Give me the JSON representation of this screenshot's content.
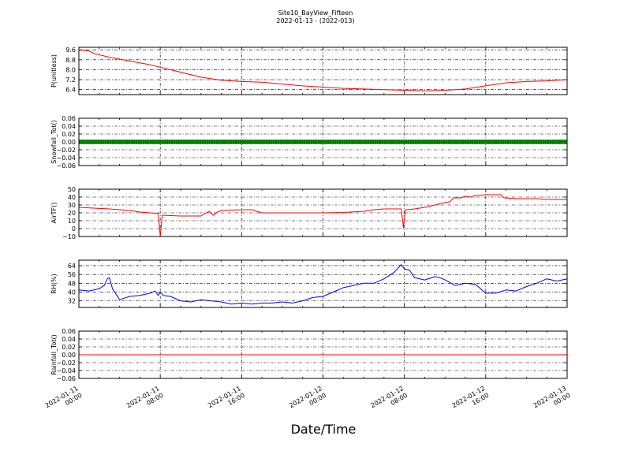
{
  "title": "Site10_BayView_Fifteen",
  "subtitle": "2022-01-13 - (2022-013)",
  "xlabel": "Date/Time",
  "x_ticks": [
    {
      "l1": "2022-01-11",
      "l2": "00:00"
    },
    {
      "l1": "2022-01-11",
      "l2": "08:00"
    },
    {
      "l1": "2022-01-11",
      "l2": "16:00"
    },
    {
      "l1": "2022-01-12",
      "l2": "00:00"
    },
    {
      "l1": "2022-01-12",
      "l2": "08:00"
    },
    {
      "l1": "2022-01-12",
      "l2": "16:00"
    },
    {
      "l1": "2022-01-13",
      "l2": "00:00"
    }
  ],
  "colors": {
    "pressure": "#ff0000",
    "snowfall": "#008000",
    "airtemp": "#ff0000",
    "rh": "#0000ff",
    "rainfall": "#ff0000"
  },
  "chart_data": [
    {
      "type": "line",
      "ylabel": "P(unitless)",
      "ylim": [
        6.0,
        9.8
      ],
      "yticks": [
        "9.6",
        "8.8",
        "8.0",
        "7.2",
        "6.4"
      ],
      "ytick_values": [
        9.6,
        8.8,
        8.0,
        7.2,
        6.4
      ],
      "x_hours": [
        0,
        1,
        1.5,
        3,
        5,
        7,
        8,
        9,
        10,
        12,
        14,
        16,
        18,
        20,
        22,
        24,
        26,
        28,
        30,
        32,
        34,
        36,
        38,
        40,
        42,
        44,
        46,
        47,
        48
      ],
      "values": [
        9.6,
        9.5,
        9.3,
        9.0,
        8.7,
        8.4,
        8.2,
        8.0,
        7.8,
        7.4,
        7.15,
        7.05,
        7.0,
        6.85,
        6.7,
        6.6,
        6.5,
        6.45,
        6.4,
        6.35,
        6.3,
        6.35,
        6.45,
        6.7,
        6.95,
        7.05,
        7.1,
        7.15,
        7.2
      ]
    },
    {
      "type": "scatter",
      "ylabel": "Snowfall_Tot()",
      "ylim": [
        -0.06,
        0.06
      ],
      "yticks": [
        "0.06",
        "0.04",
        "0.02",
        "0.00",
        "−0.02",
        "−0.04",
        "−0.06"
      ],
      "ytick_values": [
        0.06,
        0.04,
        0.02,
        0.0,
        -0.02,
        -0.04,
        -0.06
      ],
      "x_hours": [
        0,
        48
      ],
      "values": [
        0.0,
        0.0
      ]
    },
    {
      "type": "line",
      "ylabel": "AirTF()",
      "ylim": [
        -10,
        50
      ],
      "yticks": [
        "50",
        "40",
        "30",
        "20",
        "10",
        "0",
        "−10"
      ],
      "ytick_values": [
        50,
        40,
        30,
        20,
        10,
        0,
        -10
      ],
      "x_hours": [
        0,
        3,
        5,
        6,
        7,
        7.6,
        7.8,
        8.0,
        8.2,
        10,
        12,
        12.8,
        13.2,
        13.6,
        14,
        16,
        17,
        18,
        20,
        22,
        24,
        26,
        28,
        29,
        30,
        31.7,
        31.9,
        32.1,
        32.3,
        33,
        34,
        35,
        36,
        36.5,
        36.8,
        37.5,
        38,
        38.5,
        39,
        40,
        41,
        41.5,
        41.8,
        43,
        45,
        46,
        48
      ],
      "values": [
        27,
        25,
        23,
        21,
        20,
        19.5,
        19,
        -10,
        17,
        16,
        16,
        22,
        17,
        21,
        23,
        24,
        24,
        20,
        20,
        20,
        20,
        20.5,
        22,
        24,
        25,
        25,
        1,
        24,
        24,
        25,
        27,
        30,
        33,
        34,
        39,
        39,
        41,
        40,
        42,
        43,
        43,
        43,
        39,
        38,
        38,
        37,
        37
      ]
    },
    {
      "type": "line",
      "ylabel": "RH(%)",
      "ylim": [
        26,
        69
      ],
      "yticks": [
        "64",
        "56",
        "48",
        "40",
        "32"
      ],
      "ytick_values": [
        64,
        56,
        48,
        40,
        32
      ],
      "x_hours": [
        0,
        1,
        2,
        2.5,
        2.8,
        3,
        3.3,
        4,
        5,
        6,
        7,
        7.5,
        7.8,
        8,
        8.3,
        9,
        10,
        11,
        12,
        13,
        14,
        15,
        16,
        17,
        18,
        19,
        20,
        21,
        22,
        23,
        24,
        25,
        26,
        27,
        28,
        29,
        30,
        31,
        31.7,
        32,
        32.5,
        33,
        34,
        35,
        35.5,
        36,
        37,
        38,
        39,
        40,
        41,
        42,
        43,
        44,
        45,
        46,
        47,
        48
      ],
      "values": [
        42,
        41,
        43,
        46,
        52,
        53,
        43,
        33,
        36,
        37,
        39,
        41,
        37,
        40,
        37,
        36,
        32,
        31,
        33,
        32,
        31,
        29,
        30,
        29,
        30,
        30,
        31,
        30,
        32,
        35,
        36,
        40,
        44,
        46,
        48,
        48,
        52,
        58,
        65,
        61,
        60,
        53,
        51,
        54,
        53,
        51,
        46,
        48,
        47,
        39,
        39,
        42,
        41,
        45,
        48,
        52,
        50,
        52
      ]
    },
    {
      "type": "line",
      "ylabel": "Rainfall_Tot()",
      "ylim": [
        -0.06,
        0.06
      ],
      "yticks": [
        "0.06",
        "0.04",
        "0.02",
        "0.00",
        "−0.02",
        "−0.04",
        "−0.06"
      ],
      "ytick_values": [
        0.06,
        0.04,
        0.02,
        0.0,
        -0.02,
        -0.04,
        -0.06
      ],
      "x_hours": [
        0,
        48
      ],
      "values": [
        0.0,
        0.0
      ]
    }
  ]
}
